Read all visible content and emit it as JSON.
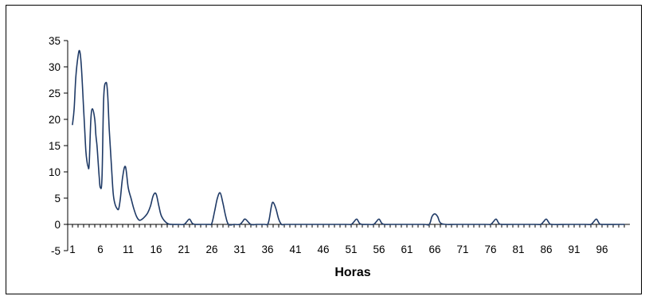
{
  "chart_data": {
    "type": "line",
    "title": "",
    "xlabel": "Horas",
    "ylabel": "",
    "xlim": [
      1,
      100
    ],
    "ylim": [
      -5,
      35
    ],
    "yticks": [
      -5,
      0,
      5,
      10,
      15,
      20,
      25,
      30,
      35
    ],
    "xticks": [
      1,
      6,
      11,
      16,
      21,
      26,
      31,
      36,
      41,
      46,
      51,
      56,
      61,
      66,
      71,
      76,
      81,
      86,
      91,
      96
    ],
    "grid": false,
    "legend": "none",
    "line_color": "#1f3a66",
    "series": [
      {
        "x": [
          1,
          1.3,
          1.6,
          2,
          2.3,
          2.6,
          3,
          3.2,
          3.4,
          3.6,
          3.8,
          4,
          4.3,
          4.6,
          5,
          5.2,
          5.4,
          5.6,
          5.8,
          6,
          6.3,
          6.6,
          7,
          7.3,
          7.6,
          8,
          8.3,
          8.6,
          9,
          9.3,
          9.6,
          10,
          10.5,
          11,
          11.5,
          12,
          12.5,
          13,
          13.5,
          14,
          14.5,
          15,
          15.5,
          16,
          16.5,
          17,
          18,
          19,
          20,
          21,
          21.5,
          22,
          22.5,
          23,
          24,
          25,
          25.5,
          26,
          26.5,
          27,
          27.5,
          28,
          28.5,
          29,
          30,
          31,
          31.5,
          32,
          33,
          34,
          35,
          35.5,
          36,
          36.3,
          36.7,
          37,
          37.5,
          38,
          38.5,
          39,
          40,
          45,
          50,
          51,
          51.5,
          52,
          52.5,
          53,
          54,
          55,
          55.5,
          56,
          56.5,
          57,
          58,
          60,
          64,
          65,
          65.5,
          66,
          66.5,
          67,
          68,
          70,
          75,
          76,
          76.5,
          77,
          77.5,
          78,
          80,
          84,
          85,
          85.5,
          86,
          86.5,
          87,
          90,
          93,
          94,
          94.5,
          95,
          95.5,
          96,
          99,
          100
        ],
        "values": [
          19,
          22,
          28,
          32,
          33,
          30,
          22,
          18,
          14,
          12,
          11,
          11.5,
          20,
          22,
          20,
          17,
          15,
          12,
          9,
          7,
          9,
          24,
          27,
          25,
          18,
          11,
          6,
          4,
          3,
          3,
          5,
          9,
          11,
          7,
          5,
          3,
          1.5,
          0.8,
          1,
          1.5,
          2.2,
          3.5,
          5.5,
          5.8,
          3.5,
          1.5,
          0.2,
          0,
          0,
          0,
          0.5,
          1,
          0.2,
          0,
          0,
          0,
          0,
          0.2,
          2.5,
          5,
          6,
          4,
          1.5,
          0,
          0,
          0,
          0.5,
          1,
          0,
          0,
          0,
          0,
          0,
          1,
          3.5,
          4.2,
          3,
          1,
          0,
          0,
          0,
          0,
          0,
          0,
          0.5,
          1,
          0.2,
          0,
          0,
          0,
          0.5,
          1,
          0.2,
          0,
          0,
          0,
          0,
          0,
          1.5,
          2,
          1.5,
          0.3,
          0,
          0,
          0,
          0,
          0.5,
          1,
          0.2,
          0,
          0,
          0,
          0,
          0.5,
          1,
          0.3,
          0,
          0,
          0,
          0,
          0.5,
          1,
          0.2,
          0,
          0,
          0
        ]
      }
    ]
  }
}
